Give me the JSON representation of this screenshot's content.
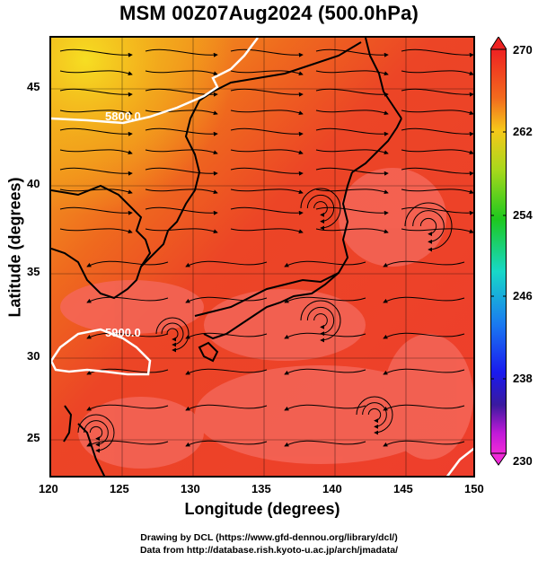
{
  "title": "MSM 00Z07Aug2024 (500.0hPa)",
  "xlabel": "Longitude (degrees)",
  "ylabel": "Latitude  (degrees)",
  "x_ticks": [
    "120",
    "125",
    "130",
    "135",
    "140",
    "145",
    "150"
  ],
  "y_ticks": [
    "25",
    "30",
    "35",
    "40",
    "45"
  ],
  "colorbar": {
    "labels": [
      "270",
      "262",
      "254",
      "246",
      "238",
      "230"
    ],
    "range": [
      230,
      270
    ]
  },
  "contours": {
    "label_upper": "5800.0",
    "label_lower": "5900.0"
  },
  "colors": {
    "warm": "#ee3b2b",
    "pale": "#f45e54",
    "orange": "#f0701e",
    "yellow": "#f5c51a",
    "contour": "#ffffff"
  },
  "credits": {
    "line1": "Drawing by DCL (https://www.gfd-dennou.org/library/dcl/)",
    "line2": "Data from http://database.rish.kyoto-u.ac.jp/arch/jmadata/"
  }
}
